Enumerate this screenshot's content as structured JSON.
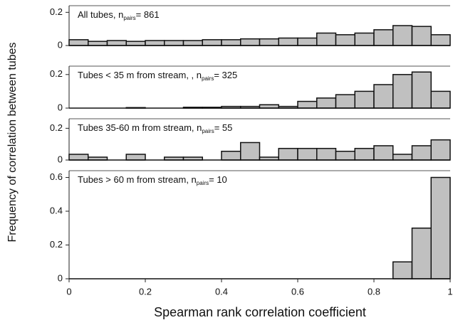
{
  "axis_labels": {
    "x": "Spearman rank correlation coefficient",
    "y": "Frequency of correlation between tubes"
  },
  "chart_data": [
    {
      "type": "histogram",
      "label": "All tubes, n",
      "subscript": "pairs",
      "label_end": "= 861",
      "color": "#c0c0c0",
      "bins": [
        0,
        0.05,
        0.1,
        0.15,
        0.2,
        0.25,
        0.3,
        0.35,
        0.4,
        0.45,
        0.5,
        0.55,
        0.6,
        0.65,
        0.7,
        0.75,
        0.8,
        0.85,
        0.9,
        0.95,
        1
      ],
      "values": [
        0.035,
        0.025,
        0.03,
        0.025,
        0.03,
        0.03,
        0.03,
        0.035,
        0.035,
        0.04,
        0.04,
        0.045,
        0.045,
        0.075,
        0.065,
        0.075,
        0.095,
        0.12,
        0.115,
        0.065
      ],
      "ylim": [
        0,
        0.24
      ],
      "yticks": [
        0,
        0.2
      ]
    },
    {
      "type": "histogram",
      "label": "Tubes < 35 m from stream, , n",
      "subscript": "pairs",
      "label_end": "= 325",
      "color": "#c0c0c0",
      "bins": [
        0,
        0.05,
        0.1,
        0.15,
        0.2,
        0.25,
        0.3,
        0.35,
        0.4,
        0.45,
        0.5,
        0.55,
        0.6,
        0.65,
        0.7,
        0.75,
        0.8,
        0.85,
        0.9,
        0.95,
        1
      ],
      "values": [
        0,
        0,
        0,
        0.003,
        0,
        0,
        0.005,
        0.005,
        0.01,
        0.01,
        0.02,
        0.01,
        0.04,
        0.06,
        0.08,
        0.1,
        0.14,
        0.2,
        0.215,
        0.1
      ],
      "ylim": [
        0,
        0.25
      ],
      "yticks": [
        0,
        0.2
      ]
    },
    {
      "type": "histogram",
      "label": "Tubes 35-60 m from stream, n",
      "subscript": "pairs",
      "label_end": "= 55",
      "color": "#c0c0c0",
      "bins": [
        0,
        0.05,
        0.1,
        0.15,
        0.2,
        0.25,
        0.3,
        0.35,
        0.4,
        0.45,
        0.5,
        0.55,
        0.6,
        0.65,
        0.7,
        0.75,
        0.8,
        0.85,
        0.9,
        0.95,
        1
      ],
      "values": [
        0.036,
        0.018,
        0,
        0.036,
        0,
        0.018,
        0.018,
        0,
        0.055,
        0.11,
        0.018,
        0.073,
        0.073,
        0.073,
        0.055,
        0.073,
        0.09,
        0.036,
        0.09,
        0.127
      ],
      "ylim": [
        0,
        0.26
      ],
      "yticks": [
        0,
        0.2
      ]
    },
    {
      "type": "histogram",
      "label": "Tubes > 60 m from stream, n",
      "subscript": "pairs",
      "label_end": "= 10",
      "color": "#c0c0c0",
      "bins": [
        0,
        0.05,
        0.1,
        0.15,
        0.2,
        0.25,
        0.3,
        0.35,
        0.4,
        0.45,
        0.5,
        0.55,
        0.6,
        0.65,
        0.7,
        0.75,
        0.8,
        0.85,
        0.9,
        0.95,
        1
      ],
      "values": [
        0,
        0,
        0,
        0,
        0,
        0,
        0,
        0,
        0,
        0,
        0,
        0,
        0,
        0,
        0,
        0,
        0,
        0.1,
        0.3,
        0.6
      ],
      "ylim": [
        0,
        0.64
      ],
      "yticks": [
        0,
        0.2,
        0.4,
        0.6
      ],
      "xlim": [
        0,
        1
      ],
      "xticks": [
        0,
        0.2,
        0.4,
        0.6,
        0.8,
        1
      ]
    }
  ]
}
